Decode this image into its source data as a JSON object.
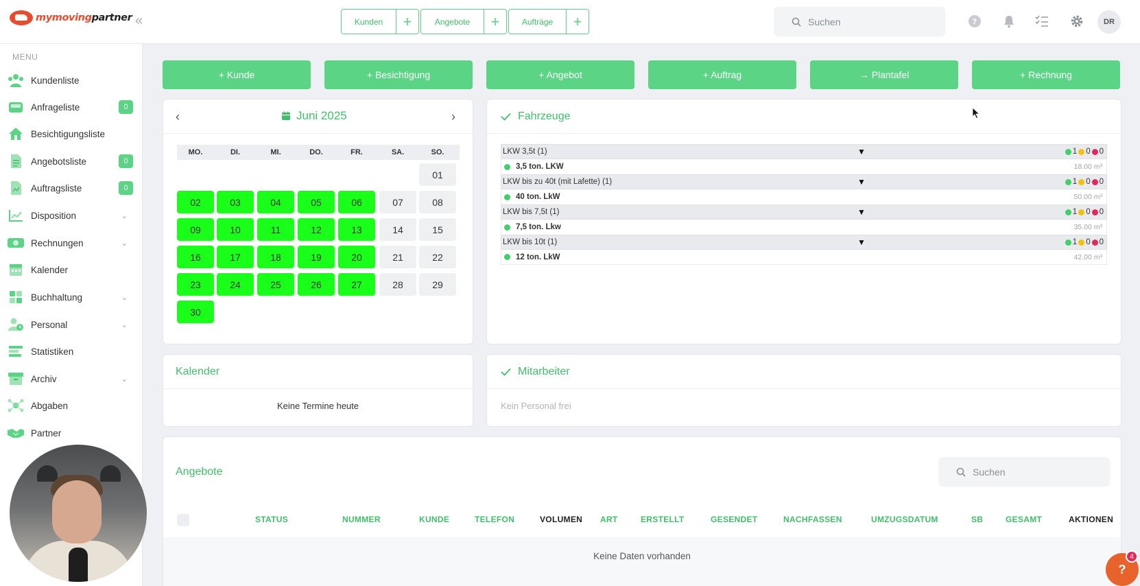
{
  "brand": {
    "name_part1": "mymoving",
    "name_part2": "partner"
  },
  "topbar": {
    "quick": [
      {
        "label": "Kunden",
        "add": "+"
      },
      {
        "label": "Angebote",
        "add": "+"
      },
      {
        "label": "Aufträge",
        "add": "+"
      }
    ],
    "search_placeholder": "Suchen",
    "user_initials": "DR",
    "collapse": "«"
  },
  "sidebar": {
    "menu_title": "MENU",
    "items": [
      {
        "label": "Kundenliste",
        "icon": "users-icon"
      },
      {
        "label": "Anfrageliste",
        "icon": "inbox-icon",
        "badge": "0"
      },
      {
        "label": "Besichtigungsliste",
        "icon": "house-icon"
      },
      {
        "label": "Angebotsliste",
        "icon": "document-icon",
        "badge": "0"
      },
      {
        "label": "Auftragsliste",
        "icon": "file-icon",
        "badge": "0"
      },
      {
        "label": "Disposition",
        "icon": "chart-icon",
        "chevron": "⌄"
      },
      {
        "label": "Rechnungen",
        "icon": "money-icon",
        "chevron": "⌄"
      },
      {
        "label": "Kalender",
        "icon": "calendar-icon"
      },
      {
        "label": "Buchhaltung",
        "icon": "grid-icon",
        "chevron": "⌄"
      },
      {
        "label": "Personal",
        "icon": "person-clock-icon",
        "chevron": "⌄"
      },
      {
        "label": "Statistiken",
        "icon": "bars-icon"
      },
      {
        "label": "Archiv",
        "icon": "archive-icon",
        "chevron": "⌄"
      },
      {
        "label": "Abgaben",
        "icon": "network-icon"
      },
      {
        "label": "Partner",
        "icon": "handshake-icon"
      }
    ]
  },
  "actions": [
    {
      "label": "+ Kunde"
    },
    {
      "label": "+ Besichtigung"
    },
    {
      "label": "+ Angebot"
    },
    {
      "label": "+ Auftrag"
    },
    {
      "label": "→ Plantafel"
    },
    {
      "label": "+ Rechnung"
    }
  ],
  "calendar": {
    "month": "Juni 2025",
    "prev": "‹",
    "next": "›",
    "weekdays": [
      "MO.",
      "DI.",
      "MI.",
      "DO.",
      "FR.",
      "SA.",
      "SO."
    ],
    "days": [
      "01",
      "02",
      "03",
      "04",
      "05",
      "06",
      "07",
      "08",
      "09",
      "10",
      "11",
      "12",
      "13",
      "14",
      "15",
      "16",
      "17",
      "18",
      "19",
      "20",
      "21",
      "22",
      "23",
      "24",
      "25",
      "26",
      "27",
      "28",
      "29",
      "30"
    ],
    "highlight_color": "#1aff1a"
  },
  "vehicles": {
    "title": "Fahrzeuge",
    "groups": [
      {
        "name": "LKW 3,5t (1)",
        "arrow": "▼",
        "green": "1",
        "yellow": "0",
        "red": "0",
        "item": "3,5 ton. LKW",
        "capacity": "18.00 m³"
      },
      {
        "name": "LKW bis zu 40t (mit Lafette) (1)",
        "arrow": "▼",
        "green": "1",
        "yellow": "0",
        "red": "0",
        "item": "40 ton. LkW",
        "capacity": "50.00 m³"
      },
      {
        "name": "LKW bis 7,5t (1)",
        "arrow": "▼",
        "green": "1",
        "yellow": "0",
        "red": "0",
        "item": "7,5 ton. Lkw",
        "capacity": "35.00 m³"
      },
      {
        "name": "LKW bis 10t (1)",
        "arrow": "▼",
        "green": "1",
        "yellow": "0",
        "red": "0",
        "item": "12 ton. LkW",
        "capacity": "42.00 m³"
      }
    ]
  },
  "kalender_card": {
    "title": "Kalender",
    "empty": "Keine Termine heute"
  },
  "mitarbeiter_card": {
    "title": "Mitarbeiter",
    "empty": "Kein Personal frei"
  },
  "angebote": {
    "title": "Angebote",
    "search_placeholder": "Suchen",
    "columns": [
      "STATUS",
      "NUMMER",
      "KUNDE",
      "TELEFON",
      "VOLUMEN",
      "ART",
      "ERSTELLT",
      "GESENDET",
      "NACHFASSEN",
      "UMZUGSDATUM",
      "SB",
      "GESAMT",
      "AKTIONEN"
    ],
    "empty": "Keine Daten vorhanden"
  },
  "help": {
    "label": "?",
    "count": "4"
  },
  "colors": {
    "accent": "#5bd585",
    "accent_text": "#3fbf69",
    "brand": "#e84c2c"
  }
}
